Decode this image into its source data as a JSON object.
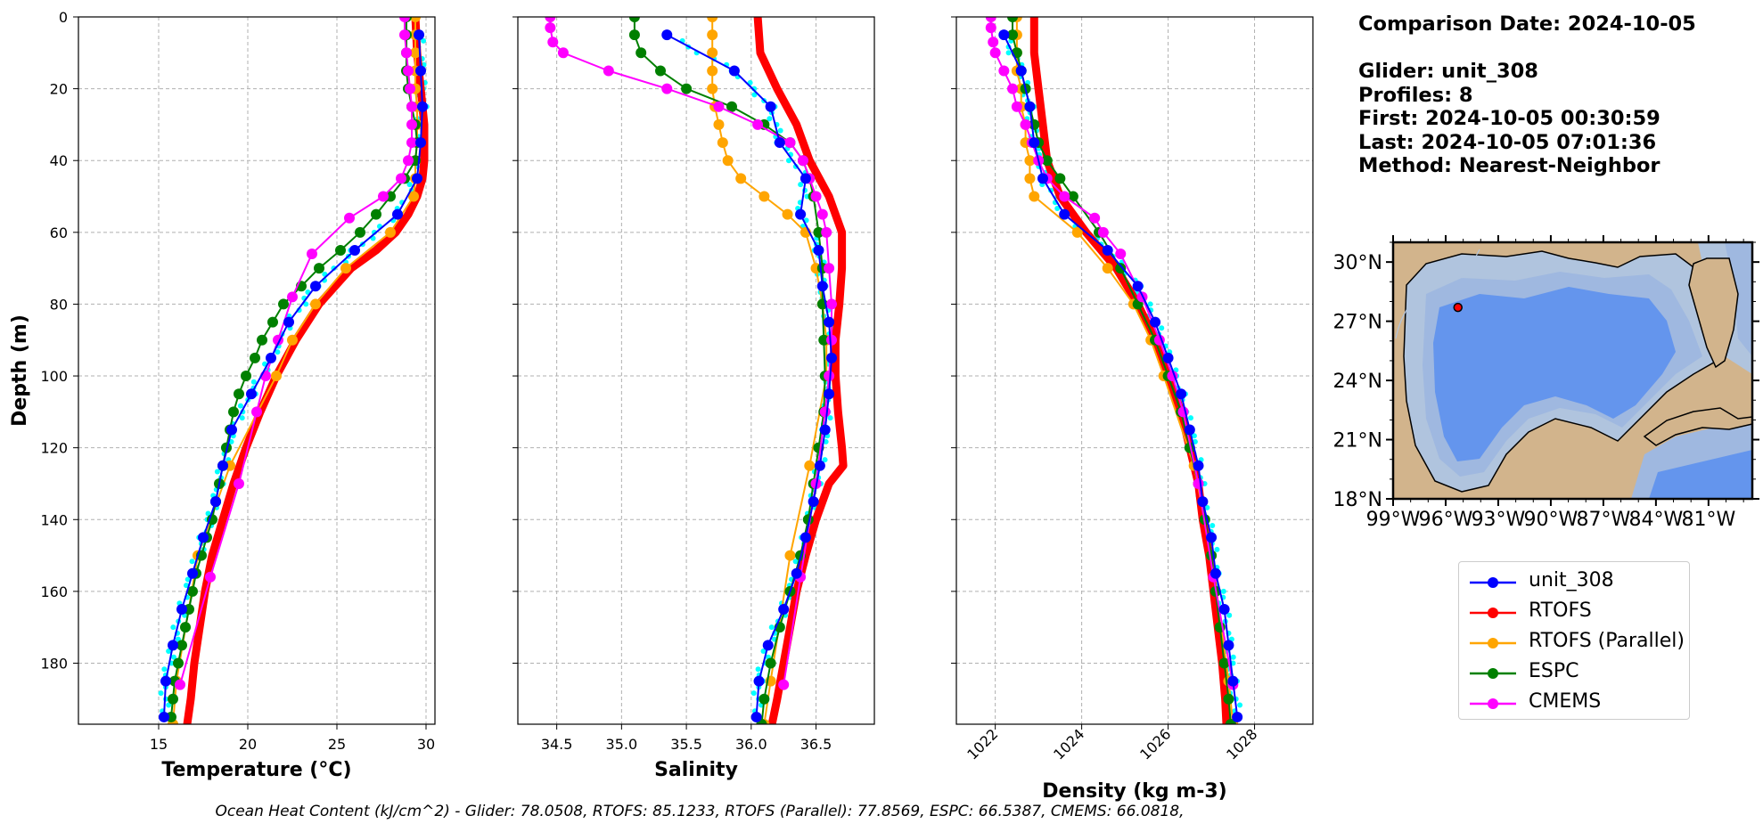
{
  "info": {
    "comparison_date": "Comparison Date: 2024-10-05",
    "glider": "Glider: unit_308",
    "profiles": "Profiles: 8",
    "first": "First: 2024-10-05 00:30:59",
    "last": "Last: 2024-10-05 07:01:36",
    "method": "Method: Nearest-Neighbor"
  },
  "footer": "Ocean Heat Content (kJ/cm^2) - Glider: 78.0508,  RTOFS: 85.1233,  RTOFS (Parallel): 77.8569,  ESPC: 66.5387,  CMEMS: 66.0818,",
  "colors": {
    "unit_308": "#0000ff",
    "RTOFS": "#ff0000",
    "RTOFS (Parallel)": "#ffa500",
    "ESPC": "#008000",
    "CMEMS": "#ff00ff",
    "glider_raw": "#00ffff",
    "land": "#d2b48c",
    "shelf": "#b0c4de",
    "slope": "#9fb8e0",
    "deep": "#6495ed"
  },
  "legend": [
    "unit_308",
    "RTOFS",
    "RTOFS (Parallel)",
    "ESPC",
    "CMEMS"
  ],
  "map": {
    "lat_ticks": [
      "30°N",
      "27°N",
      "24°N",
      "21°N",
      "18°N"
    ],
    "lon_ticks": [
      "99°W",
      "96°W",
      "93°W",
      "90°W",
      "87°W",
      "84°W",
      "81°W"
    ],
    "glider_position": {
      "lon": -95.3,
      "lat": 27.7
    }
  },
  "chart_data": [
    {
      "type": "line",
      "xlabel": "Temperature (°C)",
      "ylabel": "Depth (m)",
      "xlim": [
        10.5,
        30.5
      ],
      "ylim": [
        197,
        0
      ],
      "xticks": [
        15,
        20,
        25,
        30
      ],
      "yticks": [
        0,
        20,
        40,
        60,
        80,
        100,
        120,
        140,
        160,
        180
      ],
      "grid": true,
      "series": [
        {
          "name": "unit_308",
          "depth": [
            5,
            15,
            25,
            35,
            45,
            55,
            65,
            75,
            85,
            95,
            105,
            115,
            125,
            135,
            145,
            155,
            165,
            175,
            185,
            195
          ],
          "values": [
            29.6,
            29.7,
            29.8,
            29.7,
            29.5,
            28.4,
            26.0,
            23.8,
            22.3,
            21.3,
            20.2,
            19.1,
            18.6,
            18.2,
            17.5,
            16.9,
            16.3,
            15.8,
            15.4,
            15.3
          ]
        },
        {
          "name": "RTOFS",
          "depth": [
            0,
            10,
            20,
            30,
            40,
            45,
            50,
            55,
            60,
            65,
            70,
            80,
            90,
            100,
            110,
            120,
            130,
            140,
            150,
            160,
            170,
            180,
            190,
            197
          ],
          "values": [
            29.4,
            29.5,
            29.7,
            29.9,
            29.9,
            29.8,
            29.5,
            29.0,
            28.3,
            27.2,
            25.8,
            24.0,
            22.7,
            21.6,
            20.7,
            19.9,
            19.2,
            18.6,
            18.0,
            17.6,
            17.3,
            17.0,
            16.8,
            16.6
          ]
        },
        {
          "name": "RTOFS (Parallel)",
          "depth": [
            0,
            5,
            10,
            15,
            20,
            25,
            30,
            35,
            40,
            45,
            50,
            60,
            70,
            80,
            90,
            100,
            125,
            150,
            185,
            197
          ],
          "values": [
            29.4,
            29.4,
            29.4,
            29.4,
            29.4,
            29.5,
            29.5,
            29.5,
            29.4,
            29.4,
            29.3,
            28.0,
            25.5,
            23.8,
            22.5,
            21.6,
            19.0,
            17.2,
            16.0,
            15.8
          ]
        },
        {
          "name": "ESPC",
          "depth": [
            0,
            5,
            10,
            15,
            20,
            25,
            30,
            35,
            40,
            45,
            50,
            55,
            60,
            65,
            70,
            75,
            80,
            85,
            90,
            95,
            100,
            105,
            110,
            115,
            120,
            125,
            130,
            135,
            140,
            145,
            150,
            155,
            160,
            165,
            170,
            175,
            180,
            185,
            190,
            195
          ],
          "values": [
            28.9,
            28.9,
            28.9,
            28.9,
            29.0,
            29.2,
            29.4,
            29.5,
            29.4,
            28.8,
            28.0,
            27.2,
            26.3,
            25.2,
            24.0,
            23.0,
            22.0,
            21.4,
            20.8,
            20.4,
            19.9,
            19.5,
            19.2,
            19.0,
            18.8,
            18.6,
            18.4,
            18.2,
            18.0,
            17.7,
            17.4,
            17.1,
            16.9,
            16.7,
            16.5,
            16.3,
            16.1,
            15.9,
            15.8,
            15.7
          ]
        },
        {
          "name": "CMEMS",
          "depth": [
            0,
            5,
            10,
            15,
            20,
            25,
            30,
            35,
            40,
            45,
            50,
            56,
            66,
            78,
            90,
            100,
            110,
            130,
            156,
            186
          ],
          "values": [
            28.8,
            28.8,
            28.9,
            29.0,
            29.1,
            29.2,
            29.2,
            29.2,
            29.0,
            28.6,
            27.6,
            25.7,
            23.6,
            22.5,
            21.7,
            21.0,
            20.5,
            19.5,
            17.9,
            16.2
          ]
        }
      ]
    },
    {
      "type": "line",
      "xlabel": "Salinity",
      "xlim": [
        34.2,
        36.95
      ],
      "ylim": [
        197,
        0
      ],
      "xticks": [
        34.5,
        35.0,
        35.5,
        36.0,
        36.5
      ],
      "grid": true,
      "series": [
        {
          "name": "unit_308",
          "depth": [
            5,
            15,
            25,
            35,
            45,
            55,
            65,
            75,
            85,
            95,
            105,
            115,
            125,
            135,
            145,
            155,
            165,
            175,
            185,
            195
          ],
          "values": [
            35.35,
            35.87,
            36.15,
            36.22,
            36.42,
            36.38,
            36.52,
            36.55,
            36.6,
            36.62,
            36.6,
            36.57,
            36.53,
            36.48,
            36.42,
            36.35,
            36.25,
            36.13,
            36.06,
            36.04
          ]
        },
        {
          "name": "RTOFS",
          "depth": [
            0,
            10,
            20,
            30,
            40,
            50,
            60,
            70,
            80,
            90,
            100,
            110,
            120,
            125,
            130,
            140,
            150,
            160,
            170,
            180,
            190,
            197
          ],
          "values": [
            36.05,
            36.07,
            36.2,
            36.35,
            36.45,
            36.6,
            36.7,
            36.7,
            36.68,
            36.65,
            36.65,
            36.67,
            36.7,
            36.71,
            36.6,
            36.5,
            36.42,
            36.35,
            36.3,
            36.25,
            36.2,
            36.16
          ]
        },
        {
          "name": "RTOFS (Parallel)",
          "depth": [
            0,
            5,
            10,
            15,
            20,
            25,
            30,
            35,
            40,
            45,
            50,
            55,
            60,
            70,
            80,
            90,
            100,
            125,
            150,
            185,
            197
          ],
          "values": [
            35.7,
            35.7,
            35.7,
            35.7,
            35.7,
            35.72,
            35.75,
            35.78,
            35.82,
            35.92,
            36.1,
            36.28,
            36.42,
            36.5,
            36.55,
            36.58,
            36.58,
            36.45,
            36.3,
            36.15,
            36.1
          ]
        },
        {
          "name": "ESPC",
          "depth": [
            0,
            5,
            10,
            15,
            20,
            25,
            30,
            35,
            40,
            45,
            50,
            60,
            70,
            80,
            90,
            100,
            110,
            120,
            130,
            140,
            150,
            160,
            170,
            180,
            190,
            197
          ],
          "values": [
            35.1,
            35.1,
            35.15,
            35.3,
            35.5,
            35.85,
            36.1,
            36.3,
            36.4,
            36.45,
            36.48,
            36.52,
            36.55,
            36.55,
            36.56,
            36.57,
            36.56,
            36.52,
            36.48,
            36.44,
            36.38,
            36.3,
            36.22,
            36.15,
            36.1,
            36.08
          ]
        },
        {
          "name": "CMEMS",
          "depth": [
            0,
            3,
            7,
            10,
            15,
            20,
            25,
            30,
            35,
            40,
            45,
            50,
            55,
            60,
            70,
            80,
            90,
            100,
            110,
            130,
            156,
            186
          ],
          "values": [
            34.45,
            34.45,
            34.47,
            34.55,
            34.9,
            35.35,
            35.75,
            36.05,
            36.3,
            36.4,
            36.45,
            36.5,
            36.55,
            36.58,
            36.6,
            36.62,
            36.62,
            36.6,
            36.57,
            36.5,
            36.38,
            36.25
          ]
        }
      ]
    },
    {
      "type": "line",
      "xlabel": "Density (kg m-3)",
      "xlim": [
        1021.1,
        1029.35
      ],
      "ylim": [
        197,
        0
      ],
      "xticks": [
        1022,
        1024,
        1026,
        1028
      ],
      "grid": true,
      "series": [
        {
          "name": "unit_308",
          "depth": [
            5,
            15,
            25,
            35,
            45,
            55,
            65,
            75,
            85,
            95,
            105,
            115,
            125,
            135,
            145,
            155,
            165,
            175,
            185,
            195
          ],
          "values": [
            1022.2,
            1022.6,
            1022.8,
            1022.9,
            1023.1,
            1023.6,
            1024.6,
            1025.3,
            1025.7,
            1026.0,
            1026.3,
            1026.5,
            1026.7,
            1026.8,
            1027.0,
            1027.1,
            1027.3,
            1027.4,
            1027.5,
            1027.6
          ]
        },
        {
          "name": "RTOFS",
          "depth": [
            0,
            10,
            20,
            30,
            40,
            50,
            60,
            70,
            80,
            90,
            100,
            110,
            120,
            130,
            140,
            150,
            160,
            170,
            180,
            190,
            197
          ],
          "values": [
            1022.9,
            1022.9,
            1023.0,
            1023.1,
            1023.2,
            1023.5,
            1024.1,
            1024.8,
            1025.3,
            1025.7,
            1026.0,
            1026.3,
            1026.5,
            1026.7,
            1026.8,
            1026.95,
            1027.05,
            1027.15,
            1027.25,
            1027.32,
            1027.35
          ]
        },
        {
          "name": "RTOFS (Parallel)",
          "depth": [
            0,
            5,
            10,
            15,
            20,
            25,
            30,
            35,
            40,
            45,
            50,
            60,
            70,
            80,
            90,
            100,
            125,
            150,
            185,
            197
          ],
          "values": [
            1022.5,
            1022.5,
            1022.5,
            1022.5,
            1022.6,
            1022.6,
            1022.7,
            1022.7,
            1022.8,
            1022.8,
            1022.9,
            1023.9,
            1024.6,
            1025.2,
            1025.6,
            1025.9,
            1026.6,
            1027.0,
            1027.4,
            1027.5
          ]
        },
        {
          "name": "ESPC",
          "depth": [
            0,
            5,
            10,
            15,
            20,
            25,
            30,
            35,
            40,
            45,
            50,
            60,
            70,
            80,
            90,
            100,
            110,
            120,
            130,
            140,
            150,
            160,
            170,
            180,
            190,
            197
          ],
          "values": [
            1022.4,
            1022.4,
            1022.5,
            1022.6,
            1022.7,
            1022.8,
            1022.9,
            1023.0,
            1023.2,
            1023.5,
            1023.8,
            1024.4,
            1024.9,
            1025.3,
            1025.7,
            1026.0,
            1026.3,
            1026.5,
            1026.7,
            1026.85,
            1027.0,
            1027.1,
            1027.2,
            1027.3,
            1027.4,
            1027.45
          ]
        },
        {
          "name": "CMEMS",
          "depth": [
            0,
            3,
            7,
            10,
            15,
            20,
            25,
            30,
            35,
            40,
            45,
            50,
            56,
            60,
            66,
            78,
            90,
            100,
            110,
            130,
            156,
            186
          ],
          "values": [
            1021.9,
            1021.9,
            1021.95,
            1022.0,
            1022.2,
            1022.4,
            1022.5,
            1022.7,
            1022.85,
            1023.0,
            1023.2,
            1023.6,
            1024.3,
            1024.5,
            1024.9,
            1025.4,
            1025.8,
            1026.1,
            1026.35,
            1026.7,
            1027.05,
            1027.5
          ]
        }
      ]
    }
  ]
}
